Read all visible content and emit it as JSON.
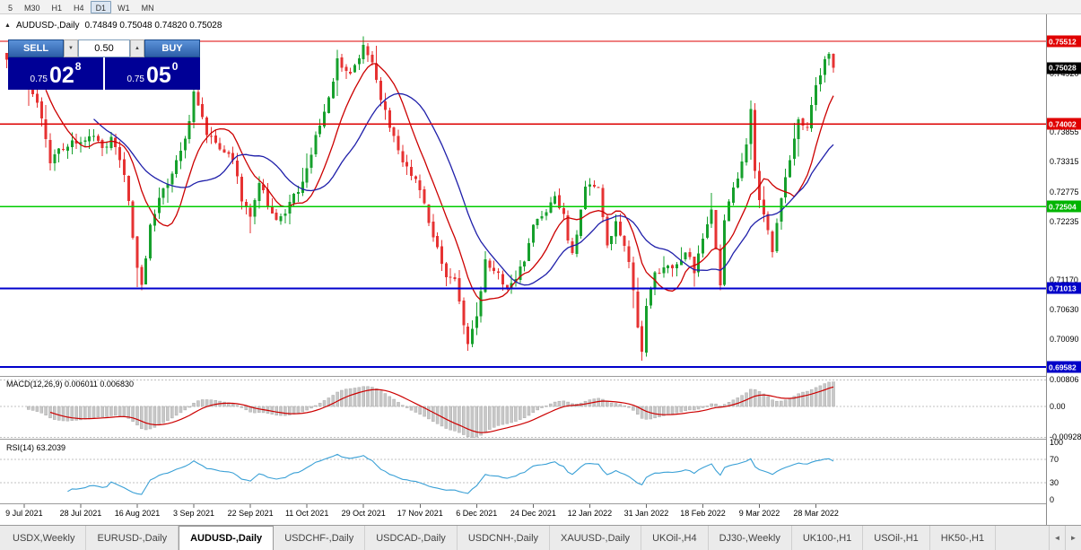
{
  "toolbar": {
    "timeframes": [
      "5",
      "M30",
      "H1",
      "H4",
      "D1",
      "W1",
      "MN"
    ],
    "active": "D1"
  },
  "header": {
    "symbol": "AUDUSD-,Daily",
    "ohlc": "0.74849 0.75048 0.74820 0.75028"
  },
  "icons": {
    "toggle": "▲",
    "spin_down": "▼",
    "spin_up": "▲",
    "tab_left": "◄",
    "tab_right": "►"
  },
  "trade": {
    "sell_label": "SELL",
    "buy_label": "BUY",
    "volume": "0.50",
    "panel_color": "#000096",
    "button_color": "#2d5fa8",
    "sell": {
      "base": "0.75",
      "big": "02",
      "sup": "8"
    },
    "buy": {
      "base": "0.75",
      "big": "05",
      "sup": "0"
    }
  },
  "price_axis": {
    "ticks": [
      "0.74920",
      "0.73855",
      "0.73315",
      "0.72775",
      "0.72235",
      "0.71170",
      "0.70630",
      "0.70090"
    ],
    "badges": [
      {
        "value": 0.75512,
        "text": "0.75512",
        "color": "#e00000"
      },
      {
        "value": 0.75028,
        "text": "0.75028",
        "color": "#000000"
      },
      {
        "value": 0.74002,
        "text": "0.74002",
        "color": "#e00000"
      },
      {
        "value": 0.72504,
        "text": "0.72504",
        "color": "#00b400"
      },
      {
        "value": 0.71013,
        "text": "0.71013",
        "color": "#0000c8"
      },
      {
        "value": 0.69582,
        "text": "0.69582",
        "color": "#0000c8"
      }
    ]
  },
  "macd": {
    "label": "MACD(12,26,9)",
    "values": "0.006011 0.006830",
    "axis": [
      {
        "text": "0.00806",
        "value": 0.00806
      },
      {
        "text": "0.00",
        "value": 0
      },
      {
        "text": "-0.00928",
        "value": -0.00928
      }
    ]
  },
  "rsi": {
    "label": "RSI(14)",
    "value": "63.2039",
    "levels": [
      70,
      30
    ],
    "axis": [
      {
        "text": "100",
        "value": 100
      },
      {
        "text": "70",
        "value": 70
      },
      {
        "text": "30",
        "value": 30
      },
      {
        "text": "0",
        "value": 0
      }
    ]
  },
  "x_axis": {
    "labels": [
      {
        "text": "9 Jul 2021",
        "index": 4
      },
      {
        "text": "28 Jul 2021",
        "index": 17
      },
      {
        "text": "16 Aug 2021",
        "index": 30
      },
      {
        "text": "3 Sep 2021",
        "index": 43
      },
      {
        "text": "22 Sep 2021",
        "index": 56
      },
      {
        "text": "11 Oct 2021",
        "index": 69
      },
      {
        "text": "29 Oct 2021",
        "index": 82
      },
      {
        "text": "17 Nov 2021",
        "index": 95
      },
      {
        "text": "6 Dec 2021",
        "index": 108
      },
      {
        "text": "24 Dec 2021",
        "index": 121
      },
      {
        "text": "12 Jan 2022",
        "index": 134
      },
      {
        "text": "31 Jan 2022",
        "index": 147
      },
      {
        "text": "18 Feb 2022",
        "index": 160
      },
      {
        "text": "9 Mar 2022",
        "index": 173
      },
      {
        "text": "28 Mar 2022",
        "index": 186
      }
    ]
  },
  "tabs": {
    "active": 2,
    "items": [
      "USDX,Weekly",
      "EURUSD-,Daily",
      "AUDUSD-,Daily",
      "USDCHF-,Daily",
      "USDCAD-,Daily",
      "USDCNH-,Daily",
      "XAUUSD-,Daily",
      "UKOil-,H4",
      "DJ30-,Weekly",
      "UK100-,H1",
      "USOil-,H1",
      "HK50-,H1"
    ]
  },
  "chart_data": {
    "type": "candlestick",
    "symbol": "AUDUSD-",
    "timeframe": "Daily",
    "count": 191,
    "last_close": 0.75028,
    "price_top": 0.75512,
    "price_bottom": 0.69582,
    "open": 0.74849,
    "high": 0.75048,
    "low": 0.7482,
    "close": 0.75028,
    "h_lines": [
      {
        "price": 0.75512,
        "color": "#dd0000",
        "width": 1.4
      },
      {
        "price": 0.74002,
        "color": "#dd0000",
        "width": 1.4
      },
      {
        "price": 0.72504,
        "color": "#00cc00",
        "width": 1.6
      },
      {
        "price": 0.71013,
        "color": "#0000cc",
        "width": 2
      },
      {
        "price": 0.69582,
        "color": "#0000cc",
        "width": 2
      }
    ],
    "ma": [
      {
        "period": 10,
        "color": "#cc0000"
      },
      {
        "period": 21,
        "color": "#2020aa"
      }
    ],
    "indicators": {
      "macd": "MACD(12,26,9)",
      "rsi": "RSI(14)"
    },
    "colors": {
      "up": "#16a02c",
      "down": "#e63232",
      "hist": "#c8c8c8",
      "hist_stroke": "#aaaaaa",
      "signal": "#cc0000",
      "rsi": "#3aa0d6"
    },
    "anchors": [
      [
        0,
        0.7525
      ],
      [
        2,
        0.7492
      ],
      [
        4,
        0.7482
      ],
      [
        7,
        0.7445
      ],
      [
        10,
        0.7335
      ],
      [
        13,
        0.7358
      ],
      [
        17,
        0.7372
      ],
      [
        20,
        0.7385
      ],
      [
        22,
        0.7355
      ],
      [
        24,
        0.7377
      ],
      [
        26,
        0.734
      ],
      [
        28,
        0.7262
      ],
      [
        30,
        0.7134
      ],
      [
        31,
        0.711
      ],
      [
        33,
        0.7214
      ],
      [
        35,
        0.7271
      ],
      [
        38,
        0.731
      ],
      [
        41,
        0.7369
      ],
      [
        43,
        0.7453
      ],
      [
        46,
        0.7387
      ],
      [
        49,
        0.7356
      ],
      [
        52,
        0.7334
      ],
      [
        54,
        0.7265
      ],
      [
        56,
        0.7232
      ],
      [
        58,
        0.7294
      ],
      [
        61,
        0.7237
      ],
      [
        63,
        0.7227
      ],
      [
        65,
        0.726
      ],
      [
        67,
        0.7277
      ],
      [
        69,
        0.7314
      ],
      [
        71,
        0.7377
      ],
      [
        73,
        0.7418
      ],
      [
        76,
        0.7517
      ],
      [
        79,
        0.749
      ],
      [
        82,
        0.7544
      ],
      [
        84,
        0.7515
      ],
      [
        86,
        0.7448
      ],
      [
        88,
        0.74
      ],
      [
        91,
        0.7327
      ],
      [
        94,
        0.7298
      ],
      [
        96,
        0.725
      ],
      [
        98,
        0.7199
      ],
      [
        101,
        0.7115
      ],
      [
        103,
        0.7124
      ],
      [
        106,
        0.6998
      ],
      [
        108,
        0.7053
      ],
      [
        110,
        0.715
      ],
      [
        113,
        0.7128
      ],
      [
        115,
        0.71
      ],
      [
        117,
        0.7123
      ],
      [
        119,
        0.715
      ],
      [
        121,
        0.722
      ],
      [
        124,
        0.7245
      ],
      [
        126,
        0.727
      ],
      [
        128,
        0.723
      ],
      [
        130,
        0.716
      ],
      [
        133,
        0.729
      ],
      [
        136,
        0.7285
      ],
      [
        138,
        0.718
      ],
      [
        140,
        0.7218
      ],
      [
        143,
        0.715
      ],
      [
        145,
        0.7035
      ],
      [
        146,
        0.6985
      ],
      [
        147,
        0.707
      ],
      [
        149,
        0.713
      ],
      [
        151,
        0.714
      ],
      [
        154,
        0.7145
      ],
      [
        156,
        0.717
      ],
      [
        158,
        0.7135
      ],
      [
        160,
        0.719
      ],
      [
        162,
        0.724
      ],
      [
        164,
        0.711
      ],
      [
        165,
        0.7225
      ],
      [
        166,
        0.7262
      ],
      [
        168,
        0.7296
      ],
      [
        170,
        0.737
      ],
      [
        171,
        0.743
      ],
      [
        172,
        0.732
      ],
      [
        173,
        0.7268
      ],
      [
        174,
        0.724
      ],
      [
        176,
        0.7168
      ],
      [
        178,
        0.726
      ],
      [
        180,
        0.734
      ],
      [
        182,
        0.7405
      ],
      [
        184,
        0.739
      ],
      [
        186,
        0.747
      ],
      [
        187,
        0.7495
      ],
      [
        188,
        0.7512
      ],
      [
        189,
        0.7528
      ],
      [
        190,
        0.75028
      ]
    ]
  }
}
